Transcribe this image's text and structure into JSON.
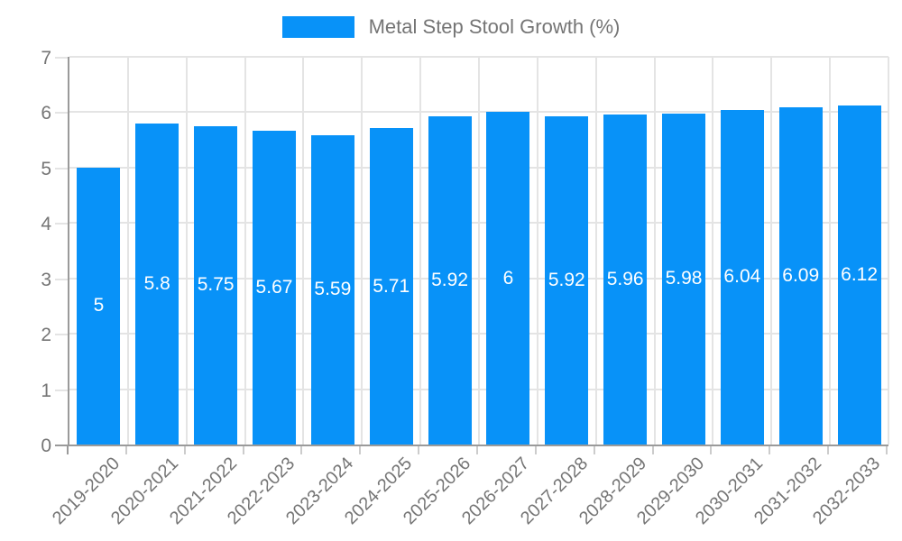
{
  "chart_data": {
    "type": "bar",
    "title": "Metal Step Stool Growth (%)",
    "legend_position": "top",
    "categories": [
      "2019-2020",
      "2020-2021",
      "2021-2022",
      "2022-2023",
      "2023-2024",
      "2024-2025",
      "2025-2026",
      "2026-2027",
      "2027-2028",
      "2028-2029",
      "2029-2030",
      "2030-2031",
      "2031-2032",
      "2032-2033"
    ],
    "values": [
      5,
      5.8,
      5.75,
      5.67,
      5.59,
      5.71,
      5.92,
      6,
      5.92,
      5.96,
      5.98,
      6.04,
      6.09,
      6.12
    ],
    "value_labels": [
      "5",
      "5.8",
      "5.75",
      "5.67",
      "5.59",
      "5.71",
      "5.92",
      "6",
      "5.92",
      "5.96",
      "5.98",
      "6.04",
      "6.09",
      "6.12"
    ],
    "xlabel": "",
    "ylabel": "",
    "ylim": [
      0,
      7
    ],
    "yticks": [
      0,
      1,
      2,
      3,
      4,
      5,
      6,
      7
    ],
    "grid": true,
    "colors": {
      "bar": "#0892f8",
      "value_label": "#ffffff",
      "axis_text": "#757575",
      "grid_line": "#e4e4e4",
      "axis_line": "#9a9a9a",
      "tick_mark": "#cccccc",
      "background": "#ffffff"
    }
  }
}
